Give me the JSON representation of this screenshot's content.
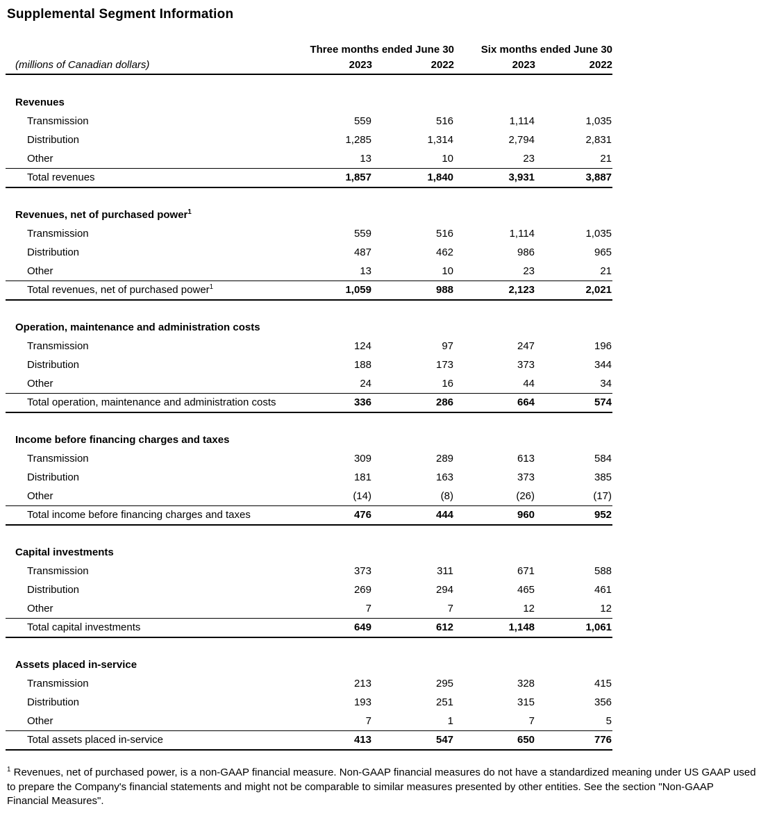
{
  "page": {
    "title": "Supplemental Segment Information",
    "units_label": "(millions of Canadian dollars)"
  },
  "table": {
    "period_headers": [
      {
        "label": "Three months ended June 30"
      },
      {
        "label": "Six months ended June 30"
      }
    ],
    "year_headers": [
      "2023",
      "2022",
      "2023",
      "2022"
    ],
    "sections": [
      {
        "header": "Revenues",
        "header_sup": "",
        "rows": [
          {
            "label": "Transmission",
            "values": [
              "559",
              "516",
              "1,114",
              "1,035"
            ]
          },
          {
            "label": "Distribution",
            "values": [
              "1,285",
              "1,314",
              "2,794",
              "2,831"
            ]
          },
          {
            "label": "Other",
            "values": [
              "13",
              "10",
              "23",
              "21"
            ]
          }
        ],
        "total": {
          "label": "Total revenues",
          "sup": "",
          "values": [
            "1,857",
            "1,840",
            "3,931",
            "3,887"
          ]
        }
      },
      {
        "header": "Revenues, net of purchased power",
        "header_sup": "1",
        "rows": [
          {
            "label": "Transmission",
            "values": [
              "559",
              "516",
              "1,114",
              "1,035"
            ]
          },
          {
            "label": "Distribution",
            "values": [
              "487",
              "462",
              "986",
              "965"
            ]
          },
          {
            "label": "Other",
            "values": [
              "13",
              "10",
              "23",
              "21"
            ]
          }
        ],
        "total": {
          "label": "Total revenues, net of purchased power",
          "sup": "1",
          "values": [
            "1,059",
            "988",
            "2,123",
            "2,021"
          ]
        }
      },
      {
        "header": "Operation, maintenance and administration costs",
        "header_sup": "",
        "rows": [
          {
            "label": "Transmission",
            "values": [
              "124",
              "97",
              "247",
              "196"
            ]
          },
          {
            "label": "Distribution",
            "values": [
              "188",
              "173",
              "373",
              "344"
            ]
          },
          {
            "label": "Other",
            "values": [
              "24",
              "16",
              "44",
              "34"
            ]
          }
        ],
        "total": {
          "label": "Total operation, maintenance and administration costs",
          "sup": "",
          "values": [
            "336",
            "286",
            "664",
            "574"
          ]
        }
      },
      {
        "header": "Income before financing charges and taxes",
        "header_sup": "",
        "rows": [
          {
            "label": "Transmission",
            "values": [
              "309",
              "289",
              "613",
              "584"
            ]
          },
          {
            "label": "Distribution",
            "values": [
              "181",
              "163",
              "373",
              "385"
            ]
          },
          {
            "label": "Other",
            "values": [
              "(14)",
              "(8)",
              "(26)",
              "(17)"
            ]
          }
        ],
        "total": {
          "label": "Total income before financing charges and taxes",
          "sup": "",
          "values": [
            "476",
            "444",
            "960",
            "952"
          ]
        }
      },
      {
        "header": "Capital investments",
        "header_sup": "",
        "rows": [
          {
            "label": "Transmission",
            "values": [
              "373",
              "311",
              "671",
              "588"
            ]
          },
          {
            "label": "Distribution",
            "values": [
              "269",
              "294",
              "465",
              "461"
            ]
          },
          {
            "label": "Other",
            "values": [
              "7",
              "7",
              "12",
              "12"
            ]
          }
        ],
        "total": {
          "label": "Total capital investments",
          "sup": "",
          "values": [
            "649",
            "612",
            "1,148",
            "1,061"
          ]
        }
      },
      {
        "header": "Assets placed in-service",
        "header_sup": "",
        "rows": [
          {
            "label": "Transmission",
            "values": [
              "213",
              "295",
              "328",
              "415"
            ]
          },
          {
            "label": "Distribution",
            "values": [
              "193",
              "251",
              "315",
              "356"
            ]
          },
          {
            "label": "Other",
            "values": [
              "7",
              "1",
              "7",
              "5"
            ]
          }
        ],
        "total": {
          "label": "Total assets placed in-service",
          "sup": "",
          "values": [
            "413",
            "547",
            "650",
            "776"
          ]
        }
      }
    ]
  },
  "footnote": {
    "sup": "1",
    "text": "Revenues, net of purchased power, is a non-GAAP financial measure. Non-GAAP financial measures do not have a standardized meaning under US GAAP used to prepare the Company's financial statements and might not be comparable to similar measures presented by other entities. See the section \"Non-GAAP Financial Measures\"."
  },
  "colors": {
    "text": "#000000",
    "background": "#ffffff",
    "rule": "#000000"
  }
}
